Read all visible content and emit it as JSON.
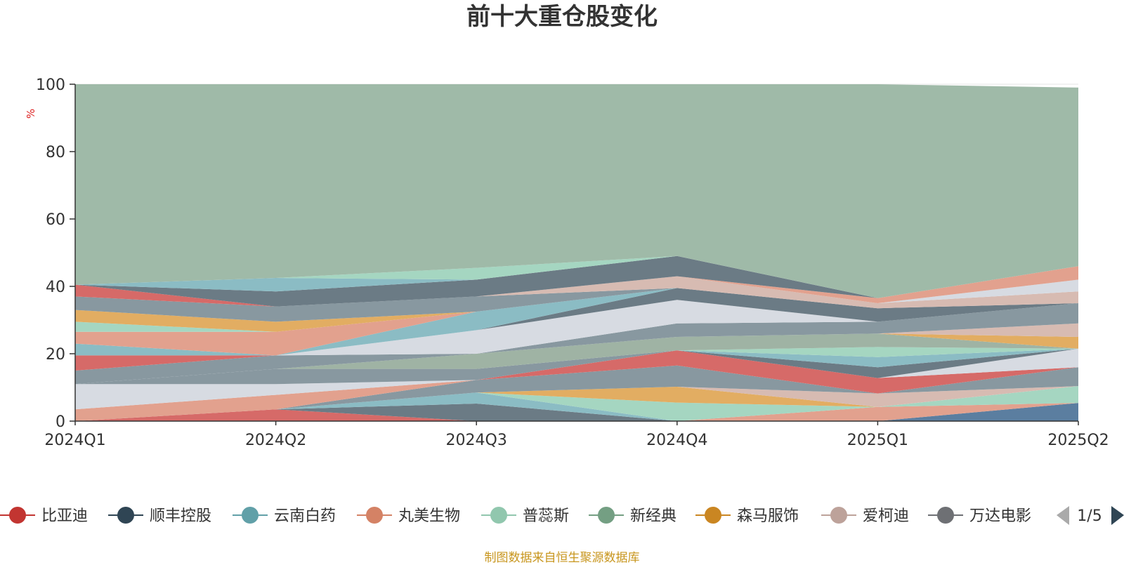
{
  "chart_data": {
    "type": "area",
    "title": "前十大重仓股变化",
    "ylabel": "%",
    "ylim": [
      0,
      100
    ],
    "yticks": [
      0,
      20,
      40,
      60,
      80,
      100
    ],
    "grid": true,
    "categories": [
      "2024Q1",
      "2024Q2",
      "2024Q3",
      "2024Q4",
      "2025Q1",
      "2025Q2"
    ],
    "bands": [
      {
        "fill": "#5b7ea0",
        "values": [
          0,
          0,
          0,
          0,
          0,
          5.4
        ]
      },
      {
        "fill": "#d66a68",
        "values": [
          0,
          3.5,
          0,
          0,
          0,
          5.4
        ]
      },
      {
        "fill": "#e2a18e",
        "values": [
          0,
          3.5,
          0,
          0,
          4.2,
          5.4
        ]
      },
      {
        "fill": "#6b7b85",
        "values": [
          0,
          3.5,
          5.2,
          0,
          4.2,
          5.4
        ]
      },
      {
        "fill": "#8bbcc4",
        "values": [
          0,
          3.5,
          8.5,
          0,
          4.2,
          5.4
        ]
      },
      {
        "fill": "#a5d6c1",
        "values": [
          0,
          3.5,
          8.5,
          5.5,
          4.2,
          10.4
        ]
      },
      {
        "fill": "#9fb3a4",
        "values": [
          0,
          3.5,
          8.5,
          5.5,
          4.2,
          10.4
        ]
      },
      {
        "fill": "#e2ad62",
        "values": [
          0,
          3.5,
          8.5,
          10.2,
          4.2,
          10.4
        ]
      },
      {
        "fill": "#d7bbb2",
        "values": [
          0,
          3.5,
          8.5,
          10.2,
          8.2,
          10.4
        ]
      },
      {
        "fill": "#8898a0",
        "values": [
          0,
          3.5,
          12.2,
          16.5,
          8.2,
          16.0
        ]
      },
      {
        "fill": "#d66a68",
        "values": [
          0,
          3.5,
          12.2,
          21.0,
          12.8,
          16.0
        ]
      },
      {
        "fill": "#e2a18e",
        "values": [
          3.5,
          7.8,
          12.2,
          21.0,
          12.8,
          16.0
        ]
      },
      {
        "fill": "#d7dbe2",
        "values": [
          11.0,
          11.0,
          12.2,
          21.0,
          12.8,
          21.5
        ]
      },
      {
        "fill": "#8898a0",
        "values": [
          11.0,
          15.5,
          15.5,
          21.0,
          12.8,
          21.5
        ]
      },
      {
        "fill": "#6b7b85",
        "values": [
          11.0,
          15.5,
          15.5,
          21.0,
          16.0,
          21.5
        ]
      },
      {
        "fill": "#8bbcc4",
        "values": [
          11.0,
          15.5,
          15.5,
          21.0,
          19.0,
          21.5
        ]
      },
      {
        "fill": "#a5d6c1",
        "values": [
          11.0,
          15.5,
          15.5,
          21.0,
          22.0,
          21.5
        ]
      },
      {
        "fill": "#9fb3a4",
        "values": [
          11.0,
          15.5,
          20.0,
          25.0,
          26.0,
          21.5
        ]
      },
      {
        "fill": "#e2ad62",
        "values": [
          11.0,
          15.5,
          20.0,
          25.0,
          26.0,
          25.0
        ]
      },
      {
        "fill": "#d7bbb2",
        "values": [
          11.0,
          15.5,
          20.0,
          25.0,
          26.0,
          29.0
        ]
      },
      {
        "fill": "#8898a0",
        "values": [
          15.0,
          19.5,
          20.0,
          29.0,
          29.5,
          35.0
        ]
      },
      {
        "fill": "#d66a68",
        "values": [
          19.5,
          19.5,
          20.0,
          29.0,
          29.5,
          35.0
        ]
      },
      {
        "fill": "#d7dbe2",
        "values": [
          19.5,
          19.5,
          27.0,
          36.0,
          29.5,
          35.0
        ]
      },
      {
        "fill": "#6b7b85",
        "values": [
          19.5,
          19.5,
          27.0,
          39.5,
          33.5,
          35.0
        ]
      },
      {
        "fill": "#8bbcc4",
        "values": [
          23.0,
          19.5,
          32.5,
          39.5,
          33.5,
          35.0
        ]
      },
      {
        "fill": "#e2a18e",
        "values": [
          26.5,
          26.5,
          32.5,
          39.5,
          33.5,
          35.0
        ]
      },
      {
        "fill": "#a5d6c1",
        "values": [
          29.5,
          26.5,
          32.5,
          39.5,
          33.5,
          35.0
        ]
      },
      {
        "fill": "#e2ad62",
        "values": [
          33.0,
          29.5,
          32.5,
          39.5,
          33.5,
          35.0
        ]
      },
      {
        "fill": "#8898a0",
        "values": [
          37.0,
          34.0,
          37.0,
          39.5,
          33.5,
          35.0
        ]
      },
      {
        "fill": "#d7bbb2",
        "values": [
          37.0,
          34.0,
          37.0,
          43.0,
          35.0,
          38.5
        ]
      },
      {
        "fill": "#d7dbe2",
        "values": [
          37.0,
          34.0,
          37.0,
          43.0,
          35.0,
          42.0
        ]
      },
      {
        "fill": "#e2a18e",
        "values": [
          37.0,
          34.0,
          37.0,
          43.0,
          36.5,
          46.0
        ]
      },
      {
        "fill": "#d66a68",
        "values": [
          40.5,
          34.0,
          37.0,
          43.0,
          36.5,
          46.0
        ]
      },
      {
        "fill": "#6b7b85",
        "values": [
          40.5,
          38.5,
          42.0,
          49.0,
          36.5,
          46.0
        ]
      },
      {
        "fill": "#8bbcc4",
        "values": [
          40.5,
          42.5,
          42.0,
          49.0,
          36.5,
          46.0
        ]
      },
      {
        "fill": "#a5d6c1",
        "values": [
          40.5,
          42.5,
          45.5,
          49.0,
          36.5,
          46.0
        ]
      },
      {
        "fill": "#9fbaa8",
        "values": [
          100,
          100,
          100,
          100,
          100,
          99.0
        ]
      }
    ],
    "legend": {
      "position": "bottom",
      "page": "1/5",
      "items": [
        {
          "name": "比亚迪",
          "color": "#c23531"
        },
        {
          "name": "顺丰控股",
          "color": "#2f4554"
        },
        {
          "name": "云南白药",
          "color": "#61a0a8"
        },
        {
          "name": "丸美生物",
          "color": "#d48265"
        },
        {
          "name": "普蕊斯",
          "color": "#91c7ae"
        },
        {
          "name": "新经典",
          "color": "#749f83"
        },
        {
          "name": "森马服饰",
          "color": "#ca8622"
        },
        {
          "name": "爱柯迪",
          "color": "#bda29a"
        },
        {
          "name": "万达电影",
          "color": "#6e7074"
        }
      ]
    }
  },
  "footer": "制图数据来自恒生聚源数据库"
}
